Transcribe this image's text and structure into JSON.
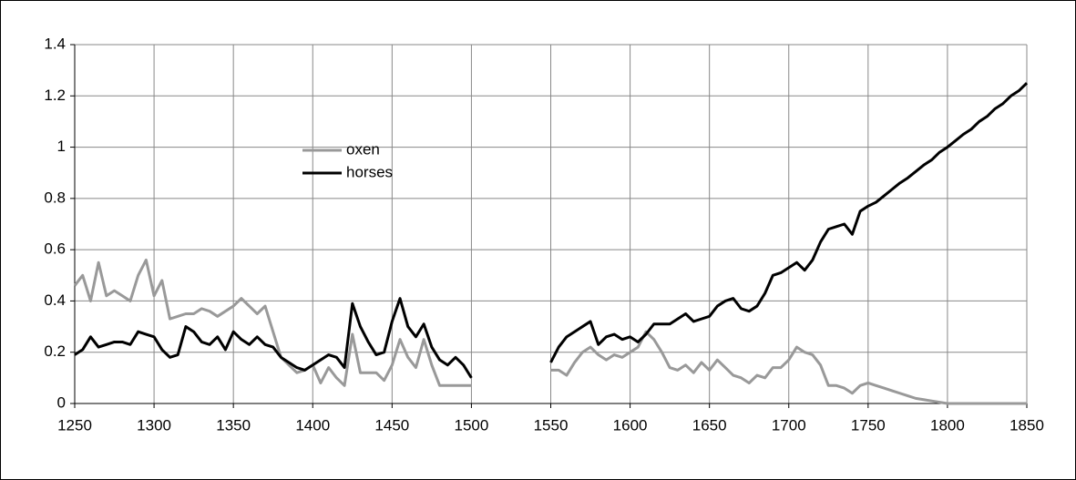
{
  "chart_data": {
    "type": "line",
    "x": [
      1250,
      1255,
      1260,
      1265,
      1270,
      1275,
      1280,
      1285,
      1290,
      1295,
      1300,
      1305,
      1310,
      1315,
      1320,
      1325,
      1330,
      1335,
      1340,
      1345,
      1350,
      1355,
      1360,
      1365,
      1370,
      1375,
      1380,
      1385,
      1390,
      1395,
      1400,
      1405,
      1410,
      1415,
      1420,
      1425,
      1430,
      1435,
      1440,
      1445,
      1450,
      1455,
      1460,
      1465,
      1470,
      1475,
      1480,
      1485,
      1490,
      1495,
      1500,
      1505,
      1510,
      1515,
      1520,
      1525,
      1530,
      1535,
      1540,
      1545,
      1550,
      1555,
      1560,
      1565,
      1570,
      1575,
      1580,
      1585,
      1590,
      1595,
      1600,
      1605,
      1610,
      1615,
      1620,
      1625,
      1630,
      1635,
      1640,
      1645,
      1650,
      1655,
      1660,
      1665,
      1670,
      1675,
      1680,
      1685,
      1690,
      1695,
      1700,
      1705,
      1710,
      1715,
      1720,
      1725,
      1730,
      1735,
      1740,
      1745,
      1750,
      1755,
      1760,
      1765,
      1770,
      1775,
      1780,
      1785,
      1790,
      1795,
      1800,
      1805,
      1810,
      1815,
      1820,
      1825,
      1830,
      1835,
      1840,
      1845,
      1850
    ],
    "series": [
      {
        "name": "oxen",
        "color": "#999999",
        "values": [
          0.46,
          0.5,
          0.4,
          0.55,
          0.42,
          0.44,
          0.42,
          0.4,
          0.5,
          0.56,
          0.42,
          0.48,
          0.33,
          0.34,
          0.35,
          0.35,
          0.37,
          0.36,
          0.34,
          0.36,
          0.38,
          0.41,
          0.38,
          0.35,
          0.38,
          0.28,
          0.18,
          0.15,
          0.12,
          0.13,
          0.15,
          0.08,
          0.14,
          0.1,
          0.07,
          0.27,
          0.12,
          0.12,
          0.12,
          0.09,
          0.15,
          0.25,
          0.18,
          0.14,
          0.25,
          0.15,
          0.07,
          0.07,
          0.07,
          0.07,
          0.07,
          null,
          null,
          null,
          null,
          null,
          null,
          null,
          null,
          null,
          0.13,
          0.13,
          0.11,
          0.16,
          0.2,
          0.22,
          0.19,
          0.17,
          0.19,
          0.18,
          0.2,
          0.22,
          0.28,
          0.25,
          0.2,
          0.14,
          0.13,
          0.15,
          0.12,
          0.16,
          0.13,
          0.17,
          0.14,
          0.11,
          0.1,
          0.08,
          0.11,
          0.1,
          0.14,
          0.14,
          0.17,
          0.22,
          0.2,
          0.19,
          0.15,
          0.07,
          0.07,
          0.06,
          0.04,
          0.07,
          0.08,
          0.07,
          0.06,
          0.05,
          0.04,
          0.03,
          0.02,
          0.015,
          0.01,
          0.005,
          0,
          0,
          0,
          0,
          0,
          0,
          0,
          0,
          0,
          0,
          0
        ]
      },
      {
        "name": "horses",
        "color": "#000000",
        "values": [
          0.19,
          0.21,
          0.26,
          0.22,
          0.23,
          0.24,
          0.24,
          0.23,
          0.28,
          0.27,
          0.26,
          0.21,
          0.18,
          0.19,
          0.3,
          0.28,
          0.24,
          0.23,
          0.26,
          0.21,
          0.28,
          0.25,
          0.23,
          0.26,
          0.23,
          0.22,
          0.18,
          0.16,
          0.14,
          0.13,
          0.15,
          0.17,
          0.19,
          0.18,
          0.14,
          0.39,
          0.3,
          0.24,
          0.19,
          0.2,
          0.32,
          0.41,
          0.3,
          0.26,
          0.31,
          0.22,
          0.17,
          0.15,
          0.18,
          0.15,
          0.1,
          null,
          null,
          null,
          null,
          null,
          null,
          null,
          null,
          null,
          0.16,
          0.22,
          0.26,
          0.28,
          0.3,
          0.32,
          0.23,
          0.26,
          0.27,
          0.25,
          0.26,
          0.24,
          0.27,
          0.31,
          0.31,
          0.31,
          0.33,
          0.35,
          0.32,
          0.33,
          0.34,
          0.38,
          0.4,
          0.41,
          0.37,
          0.36,
          0.38,
          0.43,
          0.5,
          0.51,
          0.53,
          0.55,
          0.52,
          0.56,
          0.63,
          0.68,
          0.69,
          0.7,
          0.66,
          0.75,
          0.77,
          0.785,
          0.81,
          0.835,
          0.86,
          0.88,
          0.905,
          0.93,
          0.95,
          0.98,
          1.0,
          1.025,
          1.05,
          1.07,
          1.1,
          1.12,
          1.15,
          1.17,
          1.2,
          1.22,
          1.25
        ]
      }
    ],
    "xlim": [
      1250,
      1850
    ],
    "xticks": [
      1250,
      1300,
      1350,
      1400,
      1450,
      1500,
      1550,
      1600,
      1650,
      1700,
      1750,
      1800,
      1850
    ],
    "ylim": [
      0,
      1.4
    ],
    "yticks": [
      0,
      0.2,
      0.4,
      0.6,
      0.8,
      1,
      1.2,
      1.4
    ],
    "grid": true,
    "legend": "upper left"
  }
}
